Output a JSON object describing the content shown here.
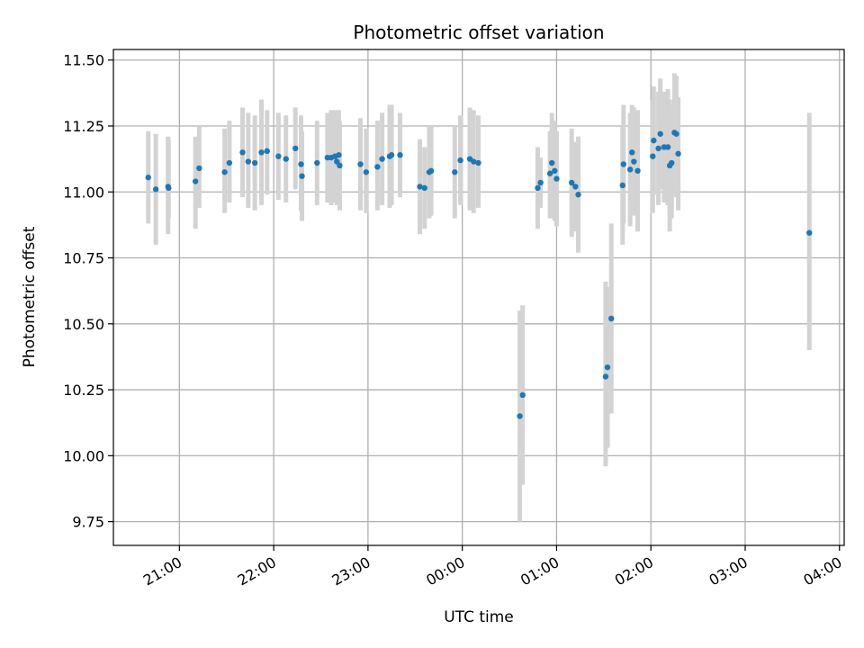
{
  "chart_data": {
    "type": "scatter",
    "title": "Photometric offset variation",
    "xlabel": "UTC time",
    "ylabel": "Photometric offset",
    "x_unit": "hours since 00:00 UTC",
    "xlim": [
      -3.7,
      4.05
    ],
    "ylim": [
      9.66,
      11.54
    ],
    "grid": true,
    "x_ticks": [
      {
        "value": -3,
        "label": "21:00"
      },
      {
        "value": -2,
        "label": "22:00"
      },
      {
        "value": -1,
        "label": "23:00"
      },
      {
        "value": 0,
        "label": "00:00"
      },
      {
        "value": 1,
        "label": "01:00"
      },
      {
        "value": 2,
        "label": "02:00"
      },
      {
        "value": 3,
        "label": "03:00"
      },
      {
        "value": 4,
        "label": "04:00"
      }
    ],
    "y_ticks": [
      {
        "value": 9.75,
        "label": "9.75"
      },
      {
        "value": 10.0,
        "label": "10.00"
      },
      {
        "value": 10.25,
        "label": "10.25"
      },
      {
        "value": 10.5,
        "label": "10.50"
      },
      {
        "value": 10.75,
        "label": "10.75"
      },
      {
        "value": 11.0,
        "label": "11.00"
      },
      {
        "value": 11.25,
        "label": "11.25"
      },
      {
        "value": 11.5,
        "label": "11.50"
      }
    ],
    "colors": {
      "points": "#1f77b4",
      "errorbars": "#d3d3d3",
      "grid": "#b0b0b0"
    },
    "points": [
      {
        "x": -3.33,
        "y": 11.055,
        "ylo": 10.88,
        "yhi": 11.23
      },
      {
        "x": -3.25,
        "y": 11.01,
        "ylo": 10.8,
        "yhi": 11.22
      },
      {
        "x": -3.12,
        "y": 11.02,
        "ylo": 10.84,
        "yhi": 11.21
      },
      {
        "x": -3.115,
        "y": 11.015,
        "ylo": 10.9,
        "yhi": 11.2
      },
      {
        "x": -2.83,
        "y": 11.04,
        "ylo": 10.86,
        "yhi": 11.21
      },
      {
        "x": -2.79,
        "y": 11.09,
        "ylo": 10.94,
        "yhi": 11.25
      },
      {
        "x": -2.52,
        "y": 11.075,
        "ylo": 10.92,
        "yhi": 11.24
      },
      {
        "x": -2.47,
        "y": 11.11,
        "ylo": 10.96,
        "yhi": 11.27
      },
      {
        "x": -2.33,
        "y": 11.15,
        "ylo": 10.98,
        "yhi": 11.32
      },
      {
        "x": -2.27,
        "y": 11.115,
        "ylo": 10.94,
        "yhi": 11.3
      },
      {
        "x": -2.2,
        "y": 11.11,
        "ylo": 10.93,
        "yhi": 11.29
      },
      {
        "x": -2.13,
        "y": 11.15,
        "ylo": 10.95,
        "yhi": 11.35
      },
      {
        "x": -2.07,
        "y": 11.155,
        "ylo": 10.99,
        "yhi": 11.31
      },
      {
        "x": -1.95,
        "y": 11.135,
        "ylo": 10.97,
        "yhi": 11.3
      },
      {
        "x": -1.87,
        "y": 11.125,
        "ylo": 10.96,
        "yhi": 11.29
      },
      {
        "x": -1.77,
        "y": 11.165,
        "ylo": 11.01,
        "yhi": 11.32
      },
      {
        "x": -1.71,
        "y": 11.105,
        "ylo": 10.93,
        "yhi": 11.29
      },
      {
        "x": -1.7,
        "y": 11.06,
        "ylo": 10.89,
        "yhi": 11.23
      },
      {
        "x": -1.54,
        "y": 11.11,
        "ylo": 10.95,
        "yhi": 11.27
      },
      {
        "x": -1.43,
        "y": 11.13,
        "ylo": 10.96,
        "yhi": 11.3
      },
      {
        "x": -1.39,
        "y": 11.13,
        "ylo": 10.95,
        "yhi": 11.31
      },
      {
        "x": -1.35,
        "y": 11.135,
        "ylo": 10.96,
        "yhi": 11.31
      },
      {
        "x": -1.33,
        "y": 11.115,
        "ylo": 10.95,
        "yhi": 11.28
      },
      {
        "x": -1.31,
        "y": 11.14,
        "ylo": 10.98,
        "yhi": 11.31
      },
      {
        "x": -1.3,
        "y": 11.1,
        "ylo": 10.93,
        "yhi": 11.27
      },
      {
        "x": -1.08,
        "y": 11.105,
        "ylo": 10.93,
        "yhi": 11.28
      },
      {
        "x": -1.02,
        "y": 11.075,
        "ylo": 10.92,
        "yhi": 11.24
      },
      {
        "x": -0.9,
        "y": 11.095,
        "ylo": 10.93,
        "yhi": 11.27
      },
      {
        "x": -0.85,
        "y": 11.125,
        "ylo": 10.95,
        "yhi": 11.3
      },
      {
        "x": -0.77,
        "y": 11.135,
        "ylo": 10.94,
        "yhi": 11.33
      },
      {
        "x": -0.75,
        "y": 11.14,
        "ylo": 10.95,
        "yhi": 11.33
      },
      {
        "x": -0.66,
        "y": 11.14,
        "ylo": 10.98,
        "yhi": 11.3
      },
      {
        "x": -0.45,
        "y": 11.02,
        "ylo": 10.84,
        "yhi": 11.2
      },
      {
        "x": -0.4,
        "y": 11.015,
        "ylo": 10.86,
        "yhi": 11.17
      },
      {
        "x": -0.35,
        "y": 11.075,
        "ylo": 10.9,
        "yhi": 11.25
      },
      {
        "x": -0.33,
        "y": 11.08,
        "ylo": 10.91,
        "yhi": 11.25
      },
      {
        "x": -0.08,
        "y": 11.075,
        "ylo": 10.9,
        "yhi": 11.25
      },
      {
        "x": -0.02,
        "y": 11.12,
        "ylo": 10.95,
        "yhi": 11.29
      },
      {
        "x": 0.08,
        "y": 11.125,
        "ylo": 10.93,
        "yhi": 11.32
      },
      {
        "x": 0.12,
        "y": 11.115,
        "ylo": 10.92,
        "yhi": 11.31
      },
      {
        "x": 0.17,
        "y": 11.11,
        "ylo": 10.94,
        "yhi": 11.29
      },
      {
        "x": 0.61,
        "y": 10.15,
        "ylo": 9.75,
        "yhi": 10.55
      },
      {
        "x": 0.64,
        "y": 10.23,
        "ylo": 9.89,
        "yhi": 10.57
      },
      {
        "x": 0.8,
        "y": 11.015,
        "ylo": 10.86,
        "yhi": 11.17
      },
      {
        "x": 0.83,
        "y": 11.035,
        "ylo": 10.94,
        "yhi": 11.13
      },
      {
        "x": 0.93,
        "y": 11.07,
        "ylo": 10.9,
        "yhi": 11.23
      },
      {
        "x": 0.95,
        "y": 11.11,
        "ylo": 10.9,
        "yhi": 11.3
      },
      {
        "x": 0.98,
        "y": 11.08,
        "ylo": 10.89,
        "yhi": 11.27
      },
      {
        "x": 1.0,
        "y": 11.05,
        "ylo": 10.87,
        "yhi": 11.23
      },
      {
        "x": 1.16,
        "y": 11.035,
        "ylo": 10.83,
        "yhi": 11.24
      },
      {
        "x": 1.2,
        "y": 11.02,
        "ylo": 10.85,
        "yhi": 11.19
      },
      {
        "x": 1.23,
        "y": 10.99,
        "ylo": 10.77,
        "yhi": 11.21
      },
      {
        "x": 1.52,
        "y": 10.3,
        "ylo": 9.96,
        "yhi": 10.66
      },
      {
        "x": 1.54,
        "y": 10.335,
        "ylo": 10.03,
        "yhi": 10.64
      },
      {
        "x": 1.58,
        "y": 10.52,
        "ylo": 10.16,
        "yhi": 10.88
      },
      {
        "x": 1.7,
        "y": 11.025,
        "ylo": 10.8,
        "yhi": 11.25
      },
      {
        "x": 1.71,
        "y": 11.105,
        "ylo": 10.88,
        "yhi": 11.33
      },
      {
        "x": 1.78,
        "y": 11.085,
        "ylo": 10.87,
        "yhi": 11.3
      },
      {
        "x": 1.8,
        "y": 11.15,
        "ylo": 10.95,
        "yhi": 11.33
      },
      {
        "x": 1.82,
        "y": 11.115,
        "ylo": 10.91,
        "yhi": 11.32
      },
      {
        "x": 1.86,
        "y": 11.08,
        "ylo": 10.85,
        "yhi": 11.31
      },
      {
        "x": 2.02,
        "y": 11.135,
        "ylo": 10.92,
        "yhi": 11.35
      },
      {
        "x": 2.03,
        "y": 11.195,
        "ylo": 10.99,
        "yhi": 11.4
      },
      {
        "x": 2.08,
        "y": 11.165,
        "ylo": 10.95,
        "yhi": 11.38
      },
      {
        "x": 2.1,
        "y": 11.22,
        "ylo": 11.01,
        "yhi": 11.43
      },
      {
        "x": 2.14,
        "y": 11.17,
        "ylo": 10.96,
        "yhi": 11.38
      },
      {
        "x": 2.18,
        "y": 11.17,
        "ylo": 10.95,
        "yhi": 11.39
      },
      {
        "x": 2.2,
        "y": 11.1,
        "ylo": 10.85,
        "yhi": 11.35
      },
      {
        "x": 2.22,
        "y": 11.11,
        "ylo": 10.9,
        "yhi": 11.33
      },
      {
        "x": 2.25,
        "y": 11.225,
        "ylo": 11.0,
        "yhi": 11.45
      },
      {
        "x": 2.27,
        "y": 11.22,
        "ylo": 10.98,
        "yhi": 11.44
      },
      {
        "x": 2.29,
        "y": 11.145,
        "ylo": 10.93,
        "yhi": 11.36
      },
      {
        "x": 3.68,
        "y": 10.845,
        "ylo": 10.4,
        "yhi": 11.3
      }
    ]
  }
}
